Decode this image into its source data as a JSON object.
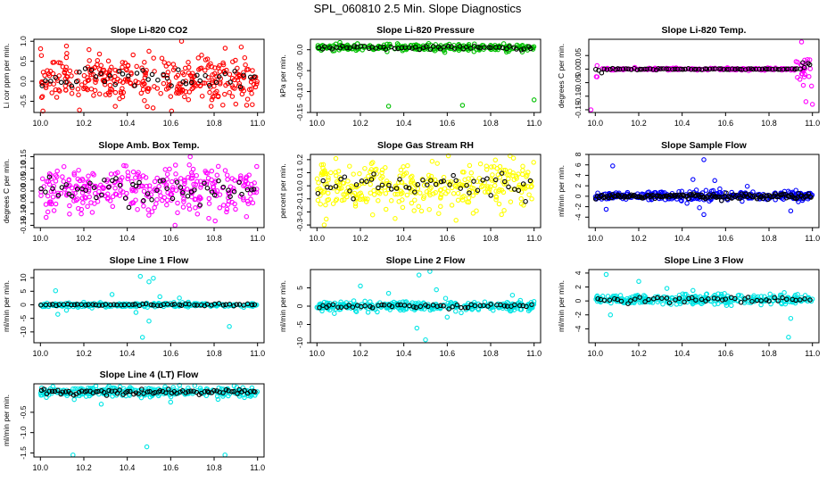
{
  "figure_title": "SPL_060810  2.5 Min. Slope Diagnostics",
  "colors": {
    "red": "#ff0000",
    "green": "#00c000",
    "magenta": "#ff00ff",
    "yellow": "#ffff00",
    "blue": "#0000ff",
    "cyan": "#00e5e5",
    "black": "#000000"
  },
  "chart_data": [
    {
      "type": "scatter",
      "title": "Slope Li-820 CO2",
      "ylabel": "Li cor ppm per min.",
      "xlim": [
        9.97,
        11.03
      ],
      "ylim": [
        -0.78,
        1.05
      ],
      "xticks": [
        10.0,
        10.2,
        10.4,
        10.6,
        10.8,
        11.0
      ],
      "xtick_labels": [
        "10.0",
        "10.2",
        "10.4",
        "10.6",
        "10.8",
        "11.0"
      ],
      "yticks": [
        -0.5,
        0.0,
        0.5,
        1.0
      ],
      "ytick_labels": [
        "-0.5",
        "0.0",
        "0.5",
        "1.0"
      ],
      "color": "red",
      "center": 0.05,
      "spread": 0.28,
      "n_main": 330,
      "n_black": 45,
      "outliers": [
        [
          10.12,
          0.88
        ],
        [
          10.65,
          1.0
        ],
        [
          10.18,
          -0.72
        ],
        [
          10.95,
          -0.6
        ],
        [
          10.5,
          0.75
        ]
      ]
    },
    {
      "type": "scatter",
      "title": "Slope Li-820 Pressure",
      "ylabel": "kPa per min.",
      "xlim": [
        9.97,
        11.03
      ],
      "ylim": [
        -0.15,
        0.025
      ],
      "xticks": [
        10.0,
        10.2,
        10.4,
        10.6,
        10.8,
        11.0
      ],
      "xtick_labels": [
        "10.0",
        "10.2",
        "10.4",
        "10.6",
        "10.8",
        "11.0"
      ],
      "yticks": [
        -0.15,
        -0.1,
        -0.05,
        0.0
      ],
      "ytick_labels": [
        "-0.15",
        "-0.10",
        "-0.05",
        "0.0"
      ],
      "color": "green",
      "center": 0.005,
      "spread": 0.004,
      "n_main": 260,
      "n_black": 60,
      "outliers": [
        [
          10.33,
          -0.135
        ],
        [
          10.67,
          -0.133
        ],
        [
          11.0,
          -0.12
        ]
      ]
    },
    {
      "type": "scatter",
      "title": "Slope Li-820 Temp.",
      "ylabel": "degrees C per min.",
      "xlim": [
        9.97,
        11.03
      ],
      "ylim": [
        -0.16,
        0.11
      ],
      "xticks": [
        10.0,
        10.2,
        10.4,
        10.6,
        10.8,
        11.0
      ],
      "xtick_labels": [
        "10.0",
        "10.2",
        "10.4",
        "10.6",
        "10.8",
        "11.0"
      ],
      "yticks": [
        -0.15,
        -0.1,
        -0.05,
        0.0,
        0.05
      ],
      "ytick_labels": [
        "-0.15",
        "-0.10",
        "-0.05",
        "0.00",
        "0.05"
      ],
      "color": "magenta",
      "center": 0.0,
      "spread": 0.002,
      "n_main": 240,
      "n_black": 80,
      "edge_spread": 0.03,
      "outliers": [
        [
          9.98,
          -0.15
        ],
        [
          10.95,
          0.1
        ],
        [
          10.97,
          -0.12
        ],
        [
          11.0,
          -0.13
        ]
      ]
    },
    {
      "type": "scatter",
      "title": "Slope Amb. Box Temp.",
      "ylabel": "degrees C per min.",
      "xlim": [
        9.97,
        11.03
      ],
      "ylim": [
        -0.16,
        0.16
      ],
      "xticks": [
        10.0,
        10.2,
        10.4,
        10.6,
        10.8,
        11.0
      ],
      "xtick_labels": [
        "10.0",
        "10.2",
        "10.4",
        "10.6",
        "10.8",
        "11.0"
      ],
      "yticks": [
        -0.15,
        -0.1,
        -0.05,
        0.0,
        0.05,
        0.1,
        0.15
      ],
      "ytick_labels": [
        "-0.15",
        "-0.10",
        "-0.05",
        "0.00",
        "0.05",
        "0.10",
        "0.15"
      ],
      "color": "magenta",
      "center": 0.0,
      "spread": 0.05,
      "n_main": 330,
      "n_black": 55,
      "outliers": [
        [
          10.69,
          0.15
        ],
        [
          10.62,
          -0.15
        ]
      ]
    },
    {
      "type": "scatter",
      "title": "Slope Gas Stream RH",
      "ylabel": "percent per min.",
      "xlim": [
        9.97,
        11.03
      ],
      "ylim": [
        -0.32,
        0.24
      ],
      "xticks": [
        10.0,
        10.2,
        10.4,
        10.6,
        10.8,
        11.0
      ],
      "xtick_labels": [
        "10.0",
        "10.2",
        "10.4",
        "10.6",
        "10.8",
        "11.0"
      ],
      "yticks": [
        -0.3,
        -0.2,
        -0.1,
        0.0,
        0.1,
        0.2
      ],
      "ytick_labels": [
        "-0.3",
        "-0.2",
        "-0.1",
        "0.0",
        "0.1",
        "0.2"
      ],
      "color": "yellow",
      "center": 0.0,
      "spread": 0.09,
      "n_main": 330,
      "n_black": 50,
      "outliers": [
        [
          10.36,
          -0.25
        ],
        [
          10.85,
          -0.22
        ]
      ]
    },
    {
      "type": "scatter",
      "title": "Slope Sample Flow",
      "ylabel": "ml/min per min.",
      "xlim": [
        9.97,
        11.03
      ],
      "ylim": [
        -6,
        8
      ],
      "xticks": [
        10.0,
        10.2,
        10.4,
        10.6,
        10.8,
        11.0
      ],
      "xtick_labels": [
        "10.0",
        "10.2",
        "10.4",
        "10.6",
        "10.8",
        "11.0"
      ],
      "yticks": [
        -4,
        -2,
        0,
        2,
        4,
        6,
        8
      ],
      "ytick_labels": [
        "-4",
        "-2",
        "0",
        "2",
        "4",
        "6",
        "8"
      ],
      "color": "blue",
      "center": 0.0,
      "spread": 0.45,
      "n_main": 320,
      "n_black": 140,
      "outliers": [
        [
          10.08,
          5.8
        ],
        [
          10.5,
          7.0
        ],
        [
          10.5,
          -3.5
        ],
        [
          10.45,
          3.2
        ],
        [
          10.55,
          3.0
        ],
        [
          10.48,
          -2.2
        ],
        [
          10.05,
          -2.5
        ],
        [
          10.9,
          -2.8
        ],
        [
          10.7,
          1.9
        ]
      ]
    },
    {
      "type": "scatter",
      "title": "Slope Line 1 Flow",
      "ylabel": "ml/min per min.",
      "xlim": [
        9.97,
        11.03
      ],
      "ylim": [
        -14,
        13
      ],
      "xticks": [
        10.0,
        10.2,
        10.4,
        10.6,
        10.8,
        11.0
      ],
      "xtick_labels": [
        "10.0",
        "10.2",
        "10.4",
        "10.6",
        "10.8",
        "11.0"
      ],
      "yticks": [
        -10,
        -5,
        0,
        5,
        10
      ],
      "ytick_labels": [
        "-10",
        "-5",
        "0",
        "5",
        "10"
      ],
      "color": "cyan",
      "center": 0.0,
      "spread": 0.35,
      "n_main": 320,
      "n_black": 60,
      "outliers": [
        [
          10.07,
          5.2
        ],
        [
          10.08,
          -3.5
        ],
        [
          10.33,
          3.8
        ],
        [
          10.46,
          10.5
        ],
        [
          10.5,
          8.5
        ],
        [
          10.52,
          9.8
        ],
        [
          10.47,
          -12.0
        ],
        [
          10.5,
          -6.0
        ],
        [
          10.44,
          -2.8
        ],
        [
          10.55,
          3.0
        ],
        [
          10.87,
          -8.0
        ],
        [
          10.64,
          2.5
        ],
        [
          10.12,
          -2.0
        ]
      ]
    },
    {
      "type": "scatter",
      "title": "Slope Line 2 Flow",
      "ylabel": "ml/min per min.",
      "xlim": [
        9.97,
        11.03
      ],
      "ylim": [
        -10,
        10
      ],
      "xticks": [
        10.0,
        10.2,
        10.4,
        10.6,
        10.8,
        11.0
      ],
      "xtick_labels": [
        "10.0",
        "10.2",
        "10.4",
        "10.6",
        "10.8",
        "11.0"
      ],
      "yticks": [
        -10,
        -5,
        0,
        5
      ],
      "ytick_labels": [
        "-10",
        "-5",
        "0",
        "5"
      ],
      "color": "cyan",
      "center": 0.0,
      "spread": 0.6,
      "n_main": 330,
      "n_black": 55,
      "outliers": [
        [
          10.2,
          5.5
        ],
        [
          10.33,
          3.5
        ],
        [
          10.47,
          8.5
        ],
        [
          10.52,
          9.5
        ],
        [
          10.5,
          -9.2
        ],
        [
          10.46,
          -6.0
        ],
        [
          10.55,
          4.5
        ],
        [
          10.08,
          -2.0
        ],
        [
          10.9,
          3.0
        ],
        [
          10.6,
          -3.0
        ]
      ]
    },
    {
      "type": "scatter",
      "title": "Slope Line 3 Flow",
      "ylabel": "ml/min per min.",
      "xlim": [
        9.97,
        11.03
      ],
      "ylim": [
        -6,
        4.5
      ],
      "xticks": [
        10.0,
        10.2,
        10.4,
        10.6,
        10.8,
        11.0
      ],
      "xtick_labels": [
        "10.0",
        "10.2",
        "10.4",
        "10.6",
        "10.8",
        "11.0"
      ],
      "yticks": [
        -4,
        -2,
        0,
        2,
        4
      ],
      "ytick_labels": [
        "-4",
        "-2",
        "0",
        "2",
        "4"
      ],
      "color": "cyan",
      "center": 0.2,
      "spread": 0.35,
      "n_main": 320,
      "n_black": 50,
      "outliers": [
        [
          10.05,
          3.8
        ],
        [
          10.07,
          -2.0
        ],
        [
          10.2,
          2.8
        ],
        [
          10.33,
          1.8
        ],
        [
          10.87,
          1.2
        ],
        [
          10.89,
          -5.2
        ],
        [
          10.9,
          -2.5
        ],
        [
          10.45,
          1.5
        ]
      ]
    },
    {
      "type": "scatter",
      "title": "Slope Line 4 (LT) Flow",
      "ylabel": "ml/min per min.",
      "xlim": [
        9.97,
        11.03
      ],
      "ylim": [
        -1.6,
        0.2
      ],
      "xticks": [
        10.0,
        10.2,
        10.4,
        10.6,
        10.8,
        11.0
      ],
      "xtick_labels": [
        "10.0",
        "10.2",
        "10.4",
        "10.6",
        "10.8",
        "11.0"
      ],
      "yticks": [
        -1.5,
        -1.0,
        -0.5
      ],
      "ytick_labels": [
        "-1.5",
        "-1.0",
        "-0.5"
      ],
      "color": "cyan",
      "center": 0.0,
      "spread": 0.06,
      "n_main": 320,
      "n_black": 80,
      "outliers": [
        [
          10.15,
          -1.55
        ],
        [
          10.49,
          -1.35
        ],
        [
          10.85,
          -1.55
        ],
        [
          10.28,
          -0.3
        ],
        [
          10.6,
          -0.25
        ]
      ]
    }
  ]
}
